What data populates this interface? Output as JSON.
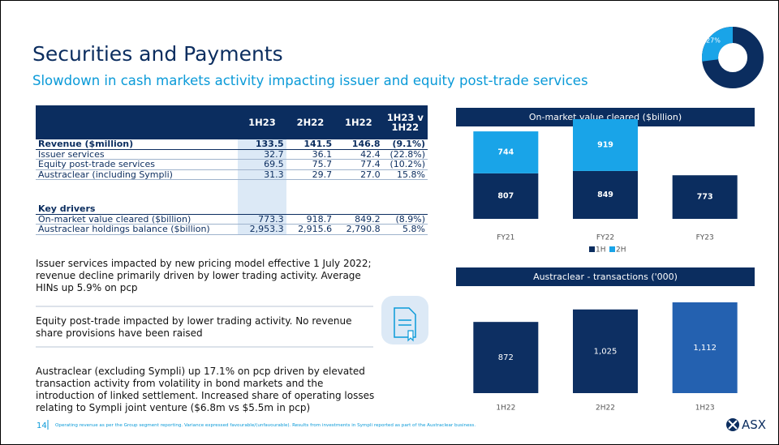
{
  "header": {
    "title": "Securities and Payments",
    "subtitle": "Slowdown in cash markets activity impacting issuer and equity post-trade services"
  },
  "donut": {
    "value": 27,
    "label": "27%"
  },
  "table": {
    "columns": [
      "1H23",
      "2H22",
      "1H22",
      "1H23 v 1H22"
    ],
    "sections": [
      {
        "heading": [
          "Revenue ($million)",
          "133.5",
          "141.5",
          "146.8",
          "(9.1%)"
        ],
        "rows": [
          [
            "Issuer services",
            "32.7",
            "36.1",
            "42.4",
            "(22.8%)"
          ],
          [
            "Equity post-trade services",
            "69.5",
            "75.7",
            "77.4",
            "(10.2%)"
          ],
          [
            "Austraclear (including Sympli)",
            "31.3",
            "29.7",
            "27.0",
            "15.8%"
          ]
        ]
      },
      {
        "heading": [
          "Key drivers"
        ],
        "rows": [
          [
            "On-market value cleared ($billion)",
            "773.3",
            "918.7",
            "849.2",
            "(8.9%)"
          ],
          [
            "Austraclear holdings balance ($billion)",
            "2,953.3",
            "2,915.6",
            "2,790.8",
            "5.8%"
          ]
        ]
      }
    ]
  },
  "notes": [
    "Issuer services impacted by new pricing model effective 1 July 2022; revenue decline primarily driven by lower trading activity. Average HINs up 5.9% on pcp",
    "Equity post-trade impacted by lower trading activity. No revenue share provisions have been raised",
    "Austraclear (excluding Sympli) up 17.1% on pcp driven by elevated transaction activity from volatility in bond markets and the introduction of linked settlement. Increased share of operating losses relating to Sympli joint venture ($6.8m vs $5.5m in pcp)"
  ],
  "charts": [
    {
      "type": "bar",
      "stacked": true,
      "title": "On-market value cleared ($billion)",
      "categories": [
        "FY21",
        "FY22",
        "FY23"
      ],
      "series": [
        {
          "name": "1H",
          "color": "#0b2d5f",
          "values": [
            807,
            849,
            773
          ]
        },
        {
          "name": "2H",
          "color": "#19a4e8",
          "values": [
            744,
            919,
            null
          ]
        }
      ]
    },
    {
      "type": "bar",
      "title": "Austraclear - transactions ('000)",
      "categories": [
        "1H22",
        "2H22",
        "1H23"
      ],
      "values": [
        872,
        1025,
        1112
      ],
      "value_labels": [
        "872",
        "1,025",
        "1,112"
      ],
      "colors": [
        "#0d2f62",
        "#0d2f62",
        "#2461b0"
      ]
    }
  ],
  "footer": {
    "page": "14",
    "note": "Operating revenue as per the Group segment reporting. Variance expressed favourable/(unfavourable). Results from investments in Sympli reported as part of the Austraclear business.",
    "logo": "ASX"
  }
}
